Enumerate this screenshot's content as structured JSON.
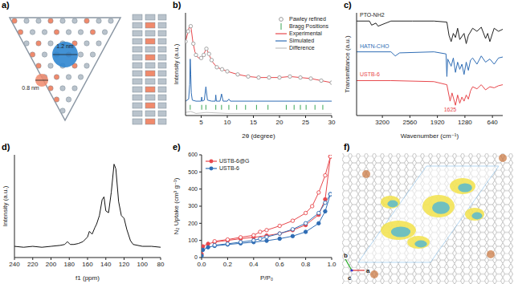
{
  "figure": {
    "a": {
      "label": "a)",
      "annotations": [
        "1.2 nm",
        "0.8 nm"
      ]
    },
    "f": {
      "label": "f)",
      "axes": [
        "b",
        "c",
        "a"
      ]
    }
  },
  "chart_data": [
    {
      "type": "line",
      "title": "b)",
      "x_label": "2θ (degree)",
      "y_label": "Intensity (a.u.)",
      "xlim": [
        2,
        30
      ],
      "xticks": [
        5,
        10,
        15,
        20,
        25,
        30
      ],
      "ylim": [
        0,
        100
      ],
      "tick_labels": "x",
      "legend": "upper right",
      "series": [
        {
          "name": "Pawley refined",
          "color": "#9a9a9a",
          "type": "scatter",
          "marker": "open_circle",
          "line_style": "none",
          "x": [
            2,
            2.5,
            3,
            3.5,
            4,
            5,
            5.5,
            6,
            6.5,
            7,
            8,
            9,
            10,
            12,
            14,
            16,
            18,
            20,
            22,
            24,
            26,
            28,
            30
          ],
          "values": [
            72,
            82,
            87,
            70,
            59,
            56,
            59,
            65,
            60,
            54,
            47,
            45,
            43,
            40,
            38,
            37,
            37,
            37,
            38,
            37,
            36,
            34,
            32
          ]
        },
        {
          "name": "Bragg Positions",
          "color": "#3aa655",
          "type": "scatter",
          "marker": "vline",
          "line_style": "none",
          "x": [
            2.9,
            5.1,
            5.9,
            7.8,
            8.9,
            10.3,
            11.8,
            13.5,
            15.6,
            17.8,
            21.3,
            22.8,
            24,
            25.1,
            26.8,
            28.3
          ],
          "values": [
            8,
            8,
            8,
            8,
            8,
            8,
            8,
            8,
            8,
            8,
            8,
            8,
            8,
            8,
            8,
            8
          ]
        },
        {
          "name": "Experimental",
          "color": "#e8474c",
          "type": "line",
          "marker": "none",
          "line_style": "solid",
          "x": [
            2,
            2.4,
            2.7,
            2.9,
            3.1,
            3.4,
            3.8,
            4.3,
            4.8,
            5.3,
            5.7,
            5.9,
            6.2,
            6.6,
            7.2,
            8,
            9,
            10,
            12,
            14,
            16,
            18,
            20,
            22,
            24,
            26,
            28,
            30
          ],
          "values": [
            72,
            80,
            86,
            88,
            84,
            72,
            62,
            57,
            55,
            57,
            62,
            65,
            63,
            58,
            52,
            47,
            45,
            43,
            40,
            38,
            37,
            37,
            37,
            38,
            37,
            36,
            34,
            32
          ]
        },
        {
          "name": "Simulated",
          "color": "#2f6db5",
          "type": "line",
          "marker": "none",
          "line_style": "solid",
          "x": [
            2,
            2.6,
            2.8,
            2.9,
            3,
            3.1,
            3.3,
            4,
            5,
            5.1,
            5.2,
            5.6,
            5.9,
            6.2,
            7,
            7.7,
            7.8,
            7.9,
            8.6,
            8.9,
            9.2,
            10,
            10.3,
            10.6,
            12,
            15,
            20,
            25,
            30
          ],
          "values": [
            14,
            16,
            30,
            55,
            40,
            22,
            15,
            14,
            14,
            18,
            14,
            15,
            28,
            15,
            14,
            14,
            20,
            14,
            14,
            21,
            14,
            14,
            16,
            14,
            14,
            14,
            14,
            14,
            14
          ]
        },
        {
          "name": "Difference",
          "color": "#c0c0c0",
          "type": "line",
          "marker": "none",
          "line_style": "solid",
          "x": [
            2,
            3,
            4,
            6,
            10,
            15,
            20,
            25,
            30
          ],
          "values": [
            3,
            4,
            2,
            3,
            2,
            2,
            2,
            2,
            2
          ]
        }
      ]
    },
    {
      "type": "line",
      "title": "c)",
      "x_label": "Wavenumber (cm⁻¹)",
      "y_label": "Transmittance (a.u.)",
      "xlim": [
        3800,
        400
      ],
      "xticks": [
        3200,
        2560,
        1920,
        1280,
        640
      ],
      "ylim": [
        0,
        100
      ],
      "tick_labels": "x",
      "annotations": [
        {
          "text": "1625",
          "x": 1625,
          "y": 12,
          "color": "#e8474c"
        }
      ],
      "series": [
        {
          "name": "PTO-NH2",
          "color": "#222222",
          "x": [
            3800,
            3500,
            3450,
            3350,
            3300,
            3000,
            2500,
            2000,
            1700,
            1650,
            1600,
            1550,
            1500,
            1450,
            1400,
            1300,
            1250,
            1200,
            1100,
            1000,
            900,
            800,
            750,
            700,
            600,
            500,
            400
          ],
          "values": [
            92,
            92,
            88,
            90,
            87,
            92,
            92,
            92,
            91,
            78,
            72,
            80,
            76,
            85,
            74,
            80,
            70,
            78,
            85,
            82,
            86,
            75,
            80,
            72,
            85,
            82,
            84
          ]
        },
        {
          "name": "HATN-CHO",
          "color": "#2f6db5",
          "x": [
            3800,
            3000,
            2900,
            2800,
            2000,
            1720,
            1700,
            1680,
            1600,
            1550,
            1500,
            1450,
            1400,
            1350,
            1300,
            1250,
            1200,
            1150,
            1100,
            1000,
            900,
            800,
            700,
            600,
            500,
            400
          ],
          "values": [
            62,
            62,
            58,
            61,
            62,
            60,
            38,
            55,
            48,
            56,
            42,
            52,
            45,
            50,
            40,
            52,
            44,
            54,
            56,
            50,
            58,
            52,
            55,
            50,
            56,
            57
          ]
        },
        {
          "name": "USTB-6",
          "color": "#e8474c",
          "x": [
            3800,
            3000,
            2000,
            1700,
            1625,
            1580,
            1500,
            1450,
            1400,
            1350,
            1300,
            1250,
            1200,
            1150,
            1100,
            1000,
            900,
            800,
            700,
            600,
            500,
            400
          ],
          "values": [
            34,
            34,
            33,
            30,
            14,
            22,
            10,
            20,
            12,
            18,
            14,
            20,
            16,
            24,
            28,
            26,
            30,
            25,
            28,
            27,
            29,
            30
          ]
        }
      ]
    },
    {
      "type": "line",
      "title": "d)",
      "x_label": "f1 (ppm)",
      "y_label": "Intensity (a.u.)",
      "xlim": [
        240,
        80
      ],
      "xticks": [
        240,
        220,
        200,
        180,
        160,
        140,
        120,
        100,
        80
      ],
      "ylim": [
        0,
        1.1
      ],
      "tick_labels": "x",
      "series": [
        {
          "name": "USTB-6",
          "color": "#111111",
          "x": [
            240,
            230,
            220,
            210,
            200,
            190,
            185,
            182,
            179,
            175,
            170,
            165,
            160,
            158,
            155,
            152,
            150,
            147,
            144,
            142,
            140,
            137,
            134,
            131,
            129,
            126,
            123,
            120,
            117,
            113,
            110,
            100,
            90,
            80
          ],
          "values": [
            0.12,
            0.11,
            0.12,
            0.11,
            0.12,
            0.13,
            0.14,
            0.17,
            0.14,
            0.14,
            0.15,
            0.17,
            0.22,
            0.28,
            0.25,
            0.32,
            0.36,
            0.45,
            0.62,
            0.65,
            0.5,
            0.48,
            0.7,
            1.0,
            0.95,
            0.6,
            0.45,
            0.42,
            0.3,
            0.18,
            0.14,
            0.12,
            0.12,
            0.11
          ]
        }
      ]
    },
    {
      "type": "line",
      "title": "e)",
      "x_label": "P/P₀",
      "y_label": "N₂ Uptake (cm³ g⁻¹)",
      "xlim": [
        0,
        1
      ],
      "xticks": [
        {
          "value": 0,
          "label": "0.0"
        },
        {
          "value": 0.2,
          "label": "0.2"
        },
        {
          "value": 0.4,
          "label": "0.4"
        },
        {
          "value": 0.6,
          "label": "0.6"
        },
        {
          "value": 0.8,
          "label": "0.8"
        },
        {
          "value": 1,
          "label": "1.0"
        }
      ],
      "ylim": [
        0,
        600
      ],
      "yticks": [
        0,
        100,
        200,
        300,
        400,
        500,
        600
      ],
      "legend": "upper left",
      "series": [
        {
          "name": "USTB-6@G",
          "color": "#e8474c",
          "marker": "circle",
          "line_style": "solid",
          "x": [
            0,
            0.01,
            0.05,
            0.1,
            0.2,
            0.3,
            0.4,
            0.5,
            0.6,
            0.7,
            0.8,
            0.9,
            0.95,
            0.99
          ],
          "values": [
            20,
            65,
            80,
            90,
            100,
            110,
            118,
            128,
            140,
            160,
            190,
            250,
            340,
            590
          ],
          "desorption": {
            "x": [
              0.99,
              0.95,
              0.9,
              0.85,
              0.8,
              0.7,
              0.6,
              0.5,
              0.45,
              0.4,
              0.3,
              0.2,
              0.1
            ],
            "values": [
              590,
              480,
              380,
              300,
              260,
              215,
              185,
              160,
              150,
              130,
              118,
              105,
              95
            ]
          }
        },
        {
          "name": "USTB-6",
          "color": "#2f6db5",
          "marker": "circle",
          "line_style": "solid",
          "x": [
            0,
            0.01,
            0.05,
            0.1,
            0.2,
            0.3,
            0.4,
            0.5,
            0.6,
            0.7,
            0.8,
            0.9,
            0.95,
            0.99
          ],
          "values": [
            10,
            45,
            60,
            68,
            76,
            83,
            90,
            98,
            110,
            125,
            150,
            200,
            270,
            370
          ],
          "desorption": {
            "x": [
              0.99,
              0.95,
              0.9,
              0.8,
              0.7,
              0.6,
              0.5,
              0.45,
              0.4,
              0.3,
              0.2,
              0.1
            ],
            "values": [
              370,
              320,
              260,
              200,
              165,
              140,
              120,
              110,
              100,
              90,
              80,
              72
            ]
          }
        }
      ]
    }
  ]
}
